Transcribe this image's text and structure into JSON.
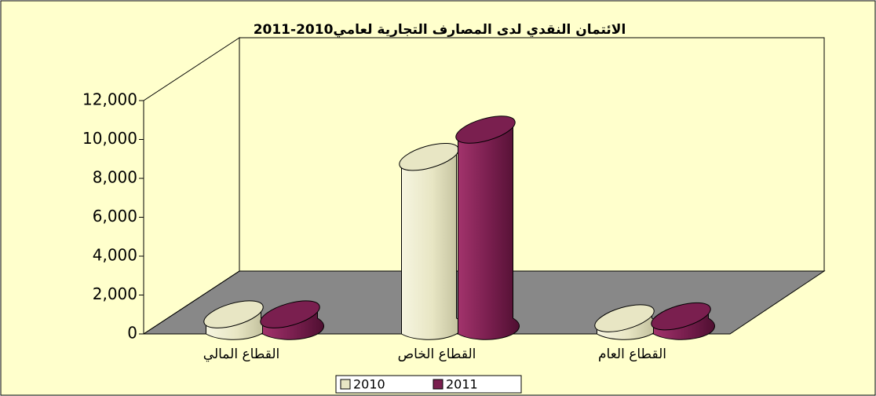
{
  "chart_data": {
    "type": "bar3d",
    "title": "الائتمان النقدي لدى المصارف التجارية لعامي2010-2011",
    "categories": [
      "القطاع المالي",
      "القطاع الخاص",
      "القطاع العام"
    ],
    "series": [
      {
        "name": "2010",
        "color": "#e8e6c4",
        "values": [
          600,
          8700,
          400
        ]
      },
      {
        "name": "2011",
        "color": "#7a1f4f",
        "values": [
          600,
          10100,
          500
        ]
      }
    ],
    "ylim": [
      0,
      12000
    ],
    "yticks": [
      0,
      {
        "value": 2000,
        "label": "2,000"
      },
      {
        "value": 4000,
        "label": "4,000"
      },
      {
        "value": 6000,
        "label": "6,000"
      },
      {
        "value": 8000,
        "label": "8,000"
      },
      {
        "value": 10000,
        "label": "10,000"
      },
      {
        "value": 12000,
        "label": "12,000"
      }
    ],
    "legend": "bottom"
  }
}
